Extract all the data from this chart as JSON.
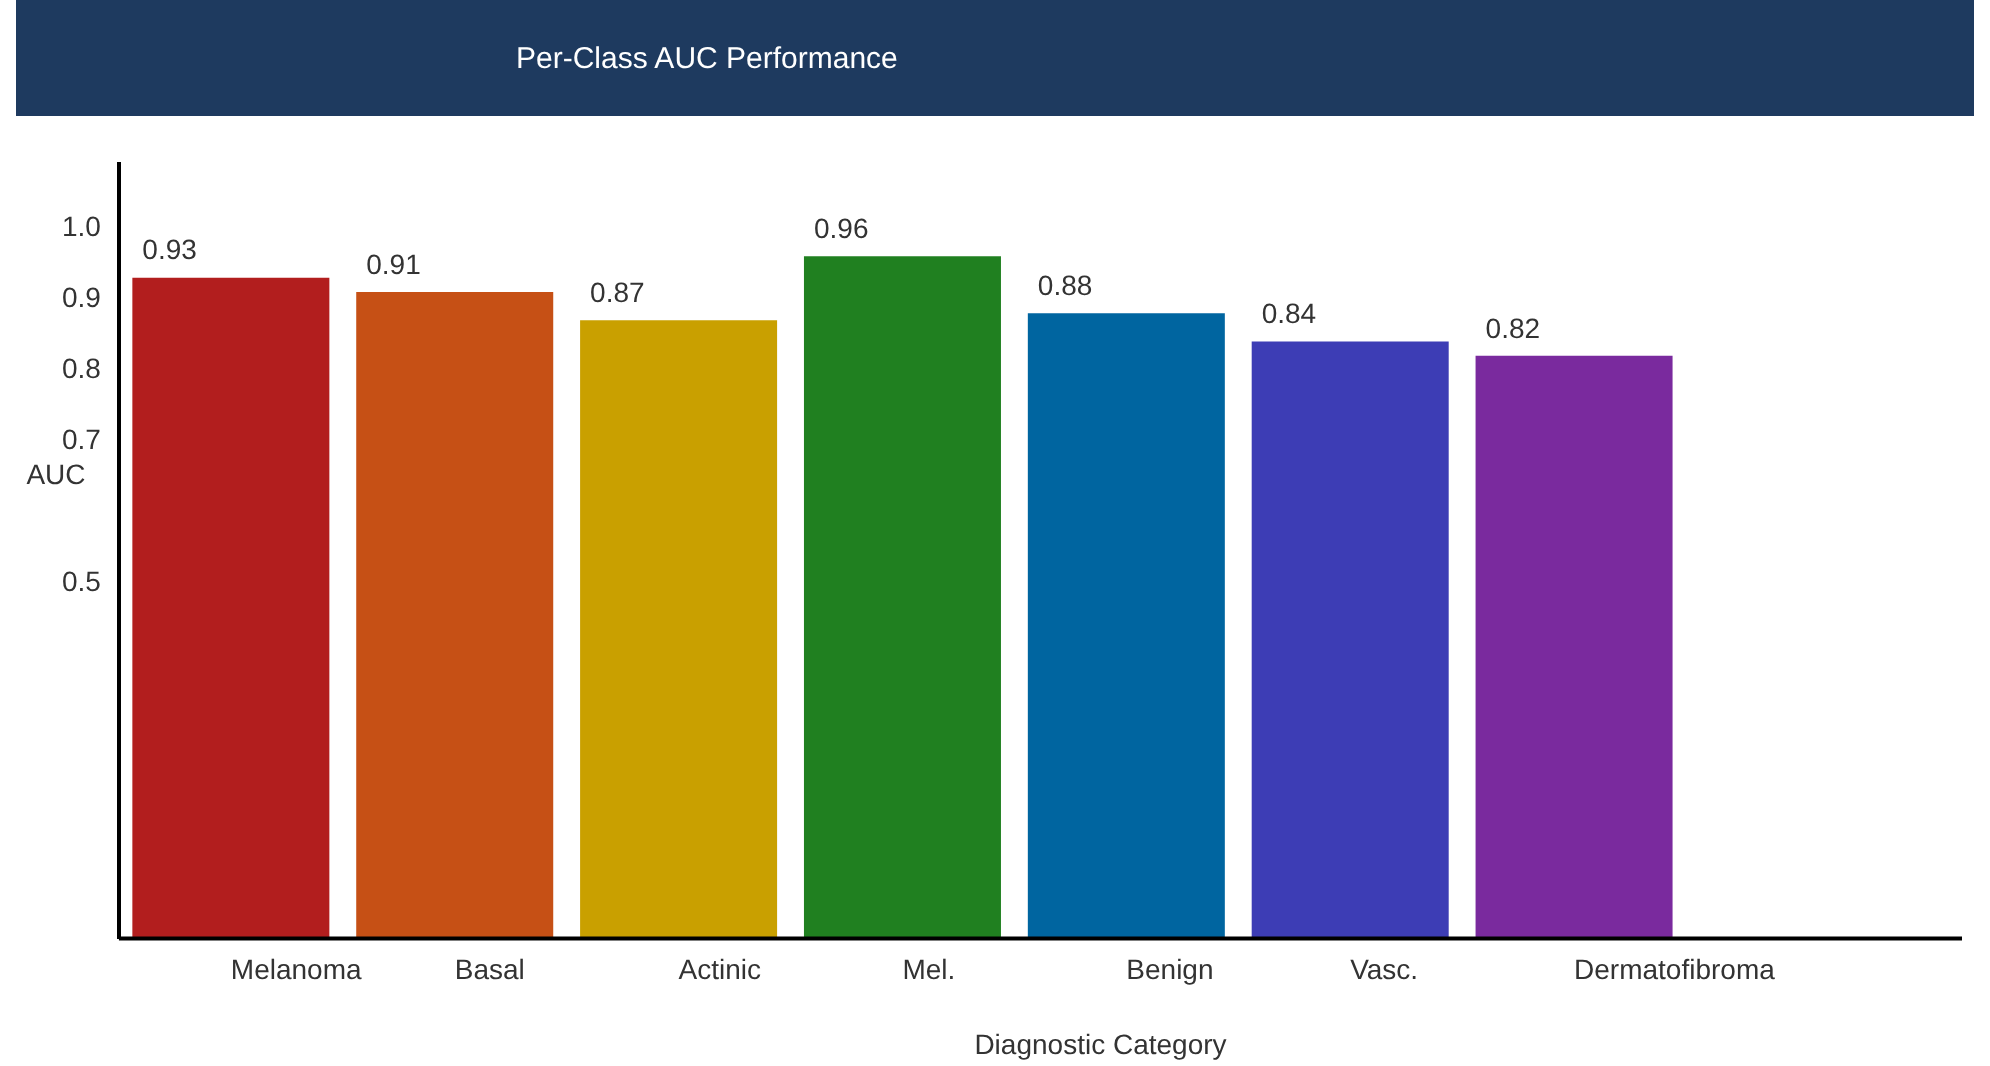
{
  "chart_data": {
    "type": "bar",
    "title": "Per-Class AUC Performance",
    "xlabel": "Diagnostic Category",
    "ylabel": "AUC",
    "categories": [
      "Melanoma",
      "Basal",
      "Actinic",
      "Mel.",
      "Benign",
      "Vasc.",
      "Dermatofibroma"
    ],
    "values": [
      0.93,
      0.91,
      0.87,
      0.96,
      0.88,
      0.84,
      0.82
    ],
    "colors": [
      "#b21e1e",
      "#c65015",
      "#c9a000",
      "#208020",
      "#0065a0",
      "#3d3db5",
      "#7a2a9e"
    ],
    "ylim": [
      0,
      1.09
    ],
    "yticks": [
      0.5,
      0.7,
      0.8,
      0.9,
      {
        "value": 1,
        "label": "1.0"
      }
    ],
    "grid": false,
    "legend": false,
    "data_labels": true
  }
}
